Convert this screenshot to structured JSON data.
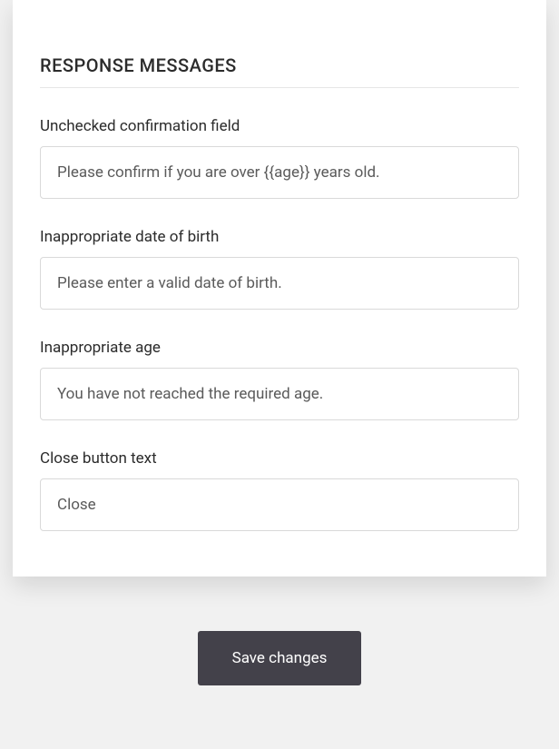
{
  "section": {
    "title": "RESPONSE MESSAGES"
  },
  "fields": {
    "unchecked": {
      "label": "Unchecked confirmation field",
      "value": "Please confirm if you are over {{age}} years old."
    },
    "inappropriate_dob": {
      "label": "Inappropriate date of birth",
      "value": "Please enter a valid date of birth."
    },
    "inappropriate_age": {
      "label": "Inappropriate age",
      "value": "You have not reached the required age."
    },
    "close_button": {
      "label": "Close button text",
      "value": "Close"
    }
  },
  "actions": {
    "save": "Save changes"
  },
  "style": {
    "page_bg": "#f1f1f1",
    "card_bg": "#ffffff",
    "text_color": "#2b2b2b",
    "input_text_color": "#5a5a5a",
    "input_border": "#d9d9d9",
    "divider": "#e6e6e6",
    "button_bg": "#43414a",
    "button_text": "#ffffff",
    "title_fontsize": 20,
    "label_fontsize": 17,
    "input_fontsize": 17,
    "button_fontsize": 17
  }
}
